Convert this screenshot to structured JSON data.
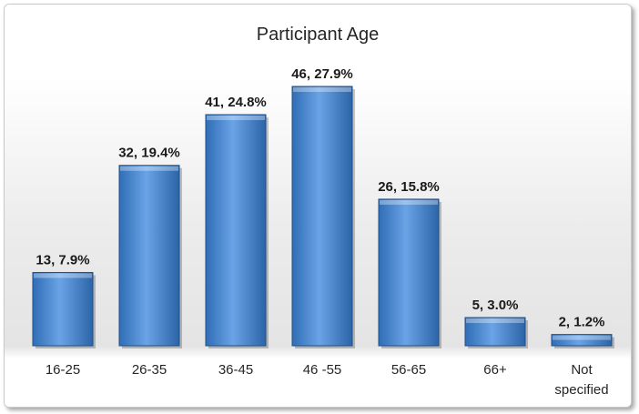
{
  "chart_data": {
    "type": "bar",
    "title": "Participant Age",
    "categories": [
      "16-25",
      "26-35",
      "36-45",
      "46 -55",
      "56-65",
      "66+",
      "Not specified"
    ],
    "values": [
      13,
      32,
      41,
      46,
      26,
      5,
      2
    ],
    "percents": [
      "7.9%",
      "19.4%",
      "24.8%",
      "27.9%",
      "15.8%",
      "3.0%",
      "1.2%"
    ],
    "data_labels": [
      "13, 7.9%",
      "32, 19.4%",
      "41, 24.8%",
      "46, 27.9%",
      "26, 15.8%",
      "5, 3.0%",
      "2, 1.2%"
    ],
    "xlabel": "",
    "ylabel": "",
    "ylim": [
      0,
      46
    ],
    "grid": false,
    "legend": "none",
    "bar_color": "#4a86d0"
  }
}
